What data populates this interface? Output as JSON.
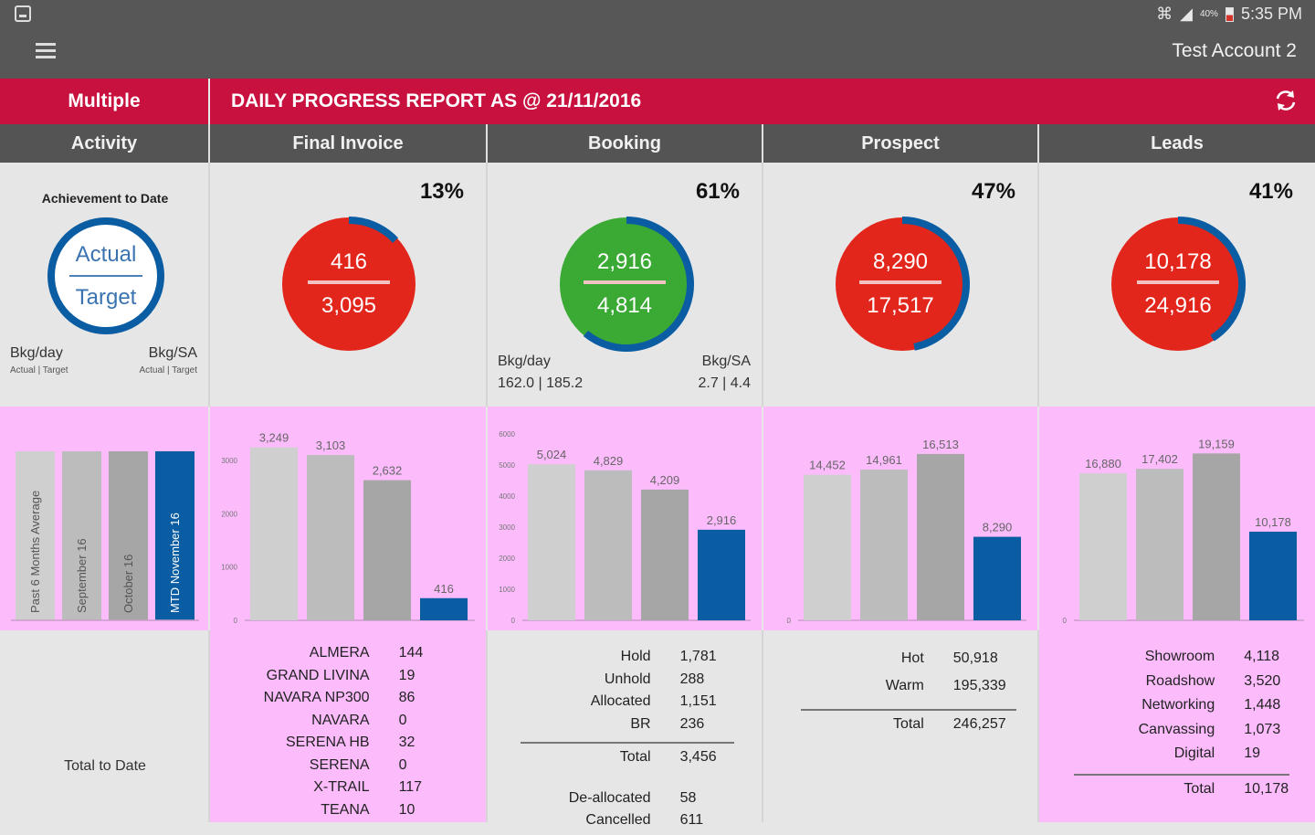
{
  "status_bar": {
    "battery_pct": "40%",
    "time": "5:35 PM"
  },
  "app_bar": {
    "account_name": "Test Account 2"
  },
  "report_bar": {
    "filter_label": "Multiple",
    "title": "DAILY PROGRESS REPORT AS @ 21/11/2016"
  },
  "columns": {
    "activity": "Activity",
    "final_invoice": "Final Invoice",
    "booking": "Booking",
    "prospect": "Prospect",
    "leads": "Leads"
  },
  "legend_card": {
    "heading": "Achievement to Date",
    "actual_label": "Actual",
    "target_label": "Target",
    "bkg_day_label": "Bkg/day",
    "bkg_sa_label": "Bkg/SA",
    "actual_target_sub": "Actual | Target",
    "bar_labels": [
      "Past 6 Months Average",
      "September 16",
      "October 16",
      "MTD November 16"
    ],
    "total_label": "Total to Date"
  },
  "kpis": {
    "final_invoice": {
      "percent": "13%",
      "progress": 0.13,
      "actual": "416",
      "target": "3,095",
      "status": "red"
    },
    "booking": {
      "percent": "61%",
      "progress": 0.61,
      "actual": "2,916",
      "target": "4,814",
      "status": "green",
      "bkg_day_label": "Bkg/day",
      "bkg_day": "162.0 | 185.2",
      "bkg_sa_label": "Bkg/SA",
      "bkg_sa": "2.7 | 4.4"
    },
    "prospect": {
      "percent": "47%",
      "progress": 0.47,
      "actual": "8,290",
      "target": "17,517",
      "status": "red"
    },
    "leads": {
      "percent": "41%",
      "progress": 0.41,
      "actual": "10,178",
      "target": "24,916",
      "status": "red"
    }
  },
  "colors": {
    "red": "#e3261c",
    "green": "#3aaa35",
    "blue": "#0a5ca3",
    "brand": "#c8113e",
    "pink": "#fcbcfc"
  },
  "chart_data": [
    {
      "type": "bar",
      "title": "Final Invoice",
      "categories": [
        "Past 6 Months Average",
        "September 16",
        "October 16",
        "MTD November 16"
      ],
      "values": [
        3249,
        3103,
        2632,
        416
      ],
      "value_labels": [
        "3,249",
        "3,103",
        "2,632",
        "416"
      ],
      "yticks": [
        "0",
        "1000",
        "2000",
        "3000"
      ],
      "ylim": [
        0,
        3500
      ]
    },
    {
      "type": "bar",
      "title": "Booking",
      "categories": [
        "Past 6 Months Average",
        "September 16",
        "October 16",
        "MTD November 16"
      ],
      "values": [
        5024,
        4829,
        4209,
        2916
      ],
      "value_labels": [
        "5,024",
        "4,829",
        "4,209",
        "2,916"
      ],
      "yticks": [
        "0",
        "1000",
        "2000",
        "3000",
        "4000",
        "5000",
        "6000"
      ],
      "ylim": [
        0,
        6000
      ]
    },
    {
      "type": "bar",
      "title": "Prospect",
      "categories": [
        "Past 6 Months Average",
        "September 16",
        "October 16",
        "MTD November 16"
      ],
      "values": [
        14452,
        14961,
        16513,
        8290
      ],
      "value_labels": [
        "14,452",
        "14,961",
        "16,513",
        "8,290"
      ],
      "yticks": [
        "0"
      ],
      "ylim": [
        0,
        18500
      ]
    },
    {
      "type": "bar",
      "title": "Leads",
      "categories": [
        "Past 6 Months Average",
        "September 16",
        "October 16",
        "MTD November 16"
      ],
      "values": [
        16880,
        17402,
        19159,
        10178
      ],
      "value_labels": [
        "16,880",
        "17,402",
        "19,159",
        "10,178"
      ],
      "yticks": [
        "0"
      ],
      "ylim": [
        0,
        21400
      ]
    }
  ],
  "tables": {
    "final_invoice": [
      {
        "label": "ALMERA",
        "value": "144"
      },
      {
        "label": "GRAND LIVINA",
        "value": "19"
      },
      {
        "label": "NAVARA NP300",
        "value": "86"
      },
      {
        "label": "NAVARA",
        "value": "0"
      },
      {
        "label": "SERENA HB",
        "value": "32"
      },
      {
        "label": "SERENA",
        "value": "0"
      },
      {
        "label": "X-TRAIL",
        "value": "117"
      },
      {
        "label": "TEANA",
        "value": "10"
      }
    ],
    "booking": {
      "rows": [
        {
          "label": "Hold",
          "value": "1,781"
        },
        {
          "label": "Unhold",
          "value": "288"
        },
        {
          "label": "Allocated",
          "value": "1,151"
        },
        {
          "label": "BR",
          "value": "236"
        }
      ],
      "total": {
        "label": "Total",
        "value": "3,456"
      },
      "extra": [
        {
          "label": "De-allocated",
          "value": "58"
        },
        {
          "label": "Cancelled",
          "value": "611"
        }
      ]
    },
    "prospect": {
      "rows": [
        {
          "label": "Hot",
          "value": "50,918"
        },
        {
          "label": "Warm",
          "value": "195,339"
        }
      ],
      "total": {
        "label": "Total",
        "value": "246,257"
      }
    },
    "leads": {
      "rows": [
        {
          "label": "Showroom",
          "value": "4,118"
        },
        {
          "label": "Roadshow",
          "value": "3,520"
        },
        {
          "label": "Networking",
          "value": "1,448"
        },
        {
          "label": "Canvassing",
          "value": "1,073"
        },
        {
          "label": "Digital",
          "value": "19"
        }
      ],
      "total": {
        "label": "Total",
        "value": "10,178"
      }
    }
  }
}
